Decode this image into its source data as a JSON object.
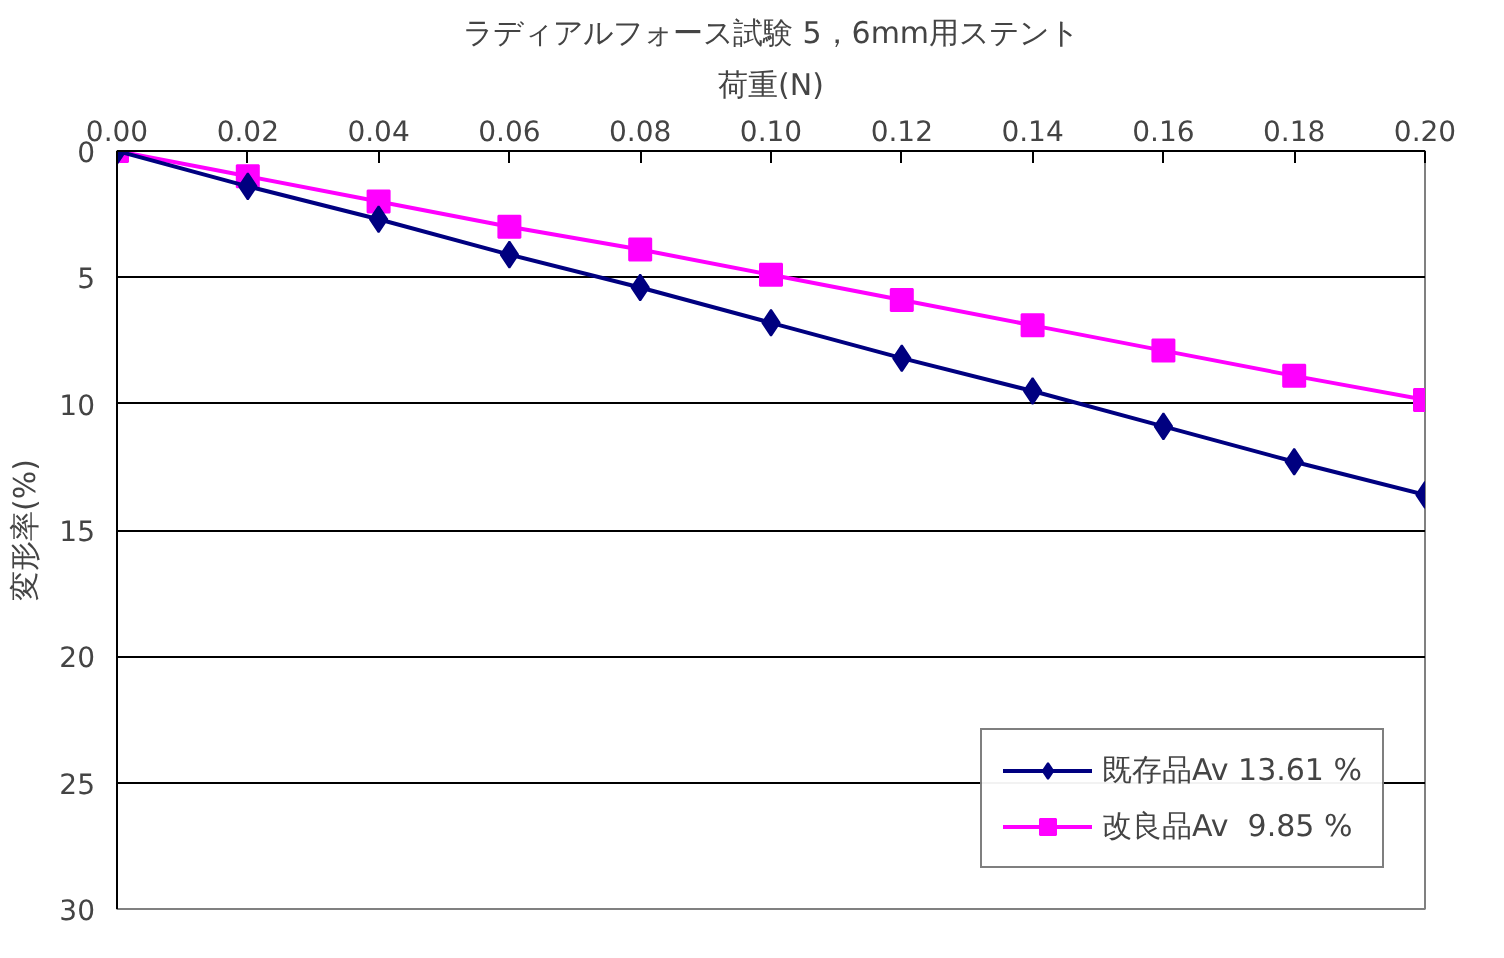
{
  "chart_data": {
    "type": "line",
    "title": "ラディアルフォース試験 5，6mm用ステント",
    "xlabel": "荷重(N)",
    "ylabel": "変形率(%)",
    "x": [
      0.0,
      0.02,
      0.04,
      0.06,
      0.08,
      0.1,
      0.12,
      0.14,
      0.16,
      0.18,
      0.2
    ],
    "series": [
      {
        "name": "既存品Av 13.61 %",
        "color": "#000080",
        "marker": "diamond",
        "values": [
          0,
          1.4,
          2.7,
          4.1,
          5.4,
          6.8,
          8.2,
          9.5,
          10.9,
          12.3,
          13.61
        ]
      },
      {
        "name": "改良品Av  9.85 %",
        "color": "#ff00ff",
        "marker": "square",
        "values": [
          0,
          1.0,
          2.0,
          3.0,
          3.9,
          4.9,
          5.9,
          6.9,
          7.9,
          8.9,
          9.85
        ]
      }
    ],
    "xlim": [
      0.0,
      0.2
    ],
    "xticks": [
      {
        "value": 0.0,
        "label": "0.00"
      },
      {
        "value": 0.02,
        "label": "0.02"
      },
      {
        "value": 0.04,
        "label": "0.04"
      },
      {
        "value": 0.06,
        "label": "0.06"
      },
      {
        "value": 0.08,
        "label": "0.08"
      },
      {
        "value": 0.1,
        "label": "0.10"
      },
      {
        "value": 0.12,
        "label": "0.12"
      },
      {
        "value": 0.14,
        "label": "0.14"
      },
      {
        "value": 0.16,
        "label": "0.16"
      },
      {
        "value": 0.18,
        "label": "0.18"
      },
      {
        "value": 0.2,
        "label": "0.20"
      }
    ],
    "ylim": [
      30,
      0
    ],
    "yticks": [
      0,
      5,
      10,
      15,
      20,
      25,
      30
    ],
    "grid": "y",
    "legend": "bottom right",
    "line_style": "solid"
  }
}
